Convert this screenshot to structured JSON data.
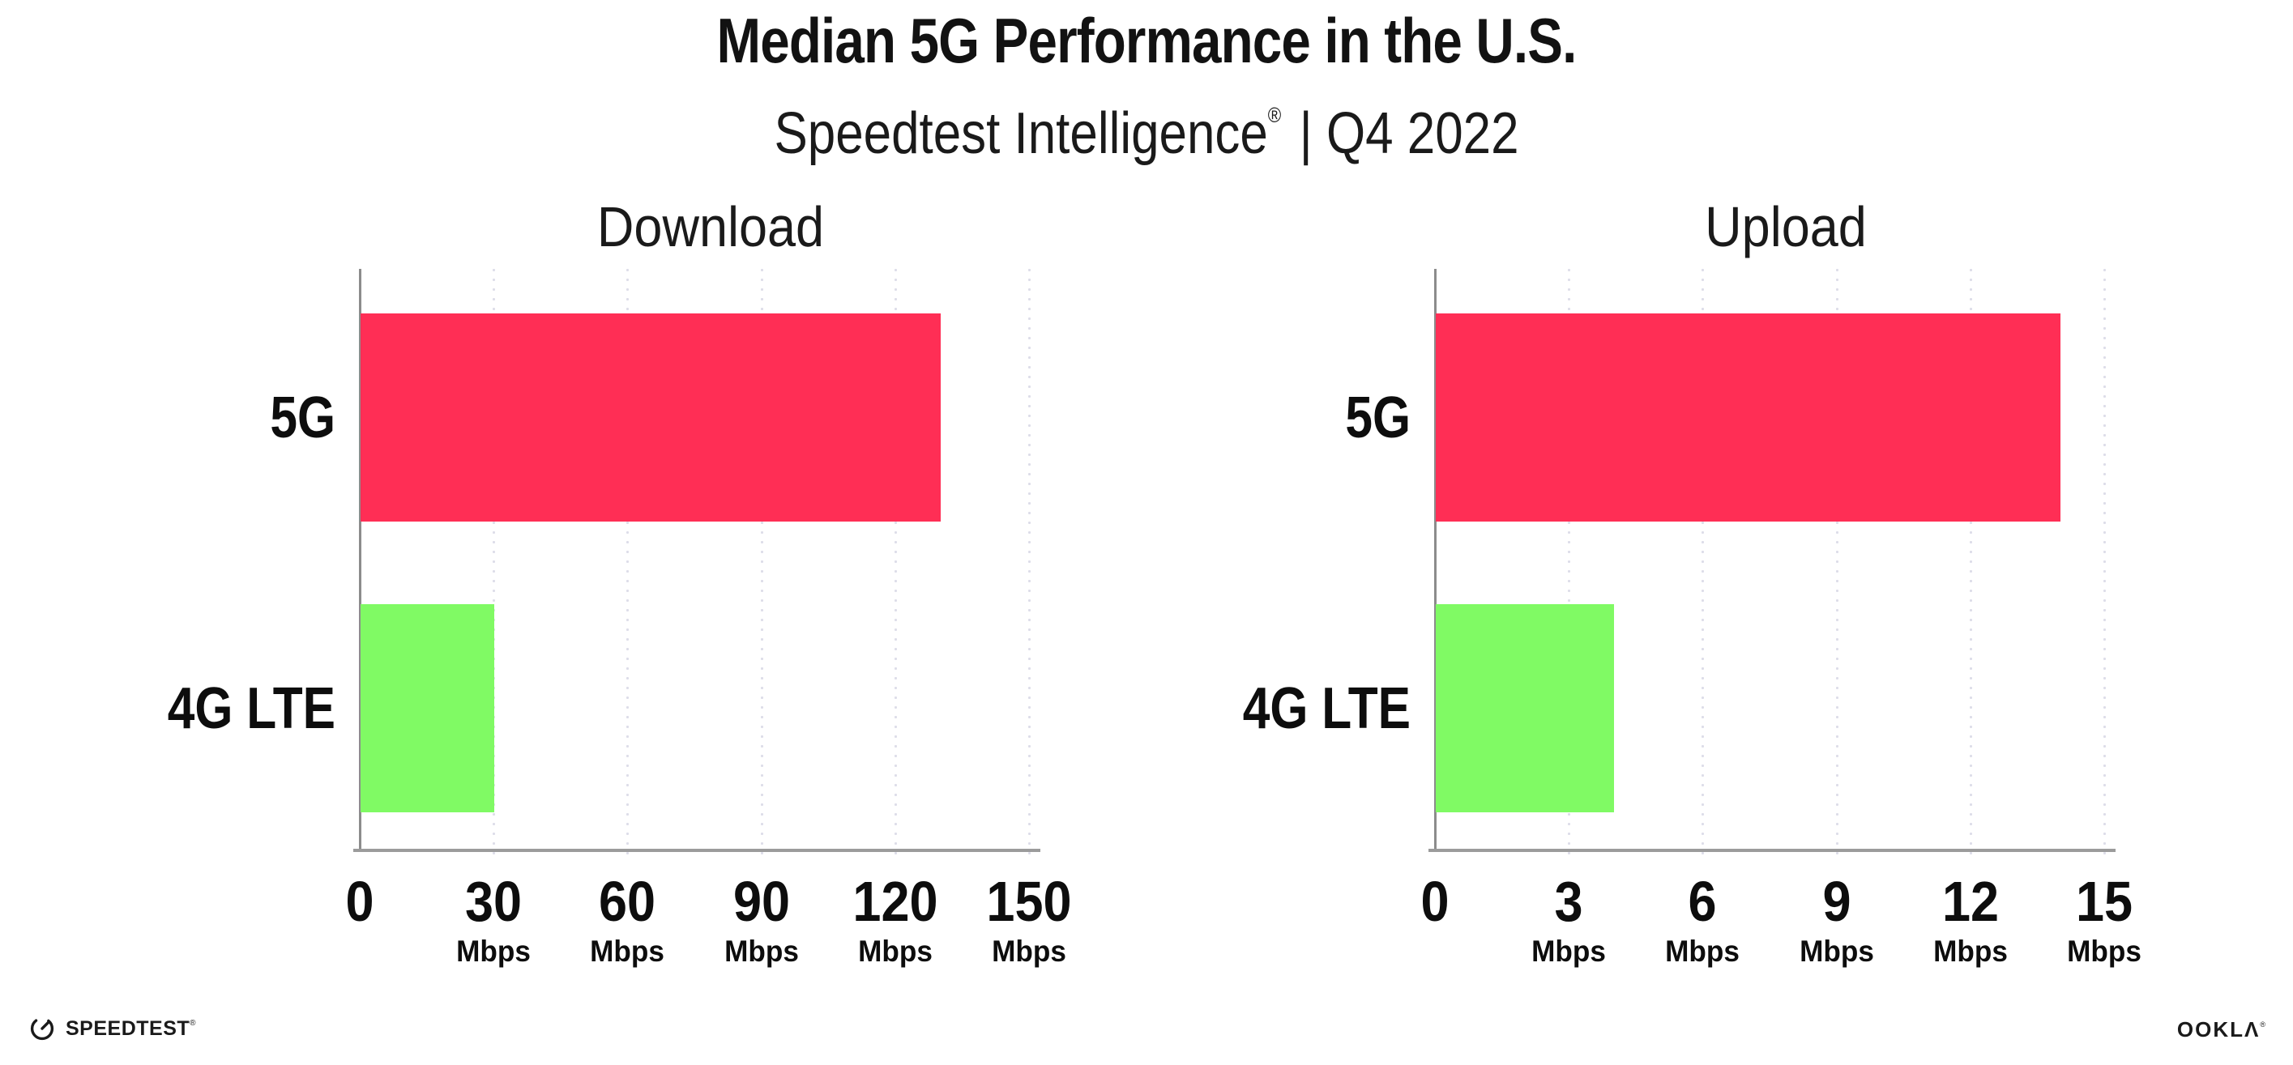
{
  "header": {
    "title": "Median 5G Performance in the U.S.",
    "subtitle_brand": "Speedtest Intelligence",
    "subtitle_reg": "®",
    "subtitle_rest": "| Q4 2022"
  },
  "chart_data": [
    {
      "type": "bar",
      "orientation": "horizontal",
      "title": "Download",
      "categories": [
        "5G",
        "4G LTE"
      ],
      "values": [
        130,
        30
      ],
      "unit": "Mbps",
      "xlim": [
        0,
        150
      ],
      "xticks": [
        0,
        30,
        60,
        90,
        120,
        150
      ],
      "bar_colors": [
        "#FF2E55",
        "#80FA64"
      ],
      "grid": "vertical-dotted",
      "legend": "none",
      "xlabel": "",
      "ylabel": ""
    },
    {
      "type": "bar",
      "orientation": "horizontal",
      "title": "Upload",
      "categories": [
        "5G",
        "4G LTE"
      ],
      "values": [
        14,
        4
      ],
      "unit": "Mbps",
      "xlim": [
        0,
        15
      ],
      "xticks": [
        0,
        3,
        6,
        9,
        12,
        15
      ],
      "bar_colors": [
        "#FF2E55",
        "#80FA64"
      ],
      "grid": "vertical-dotted",
      "legend": "none",
      "xlabel": "",
      "ylabel": ""
    }
  ],
  "footer": {
    "speedtest_label": "SPEEDTEST",
    "speedtest_mark": "®",
    "ookla_label": "OOKLΛ",
    "ookla_mark": "®"
  },
  "colors": {
    "bar_5g": "#FF2E55",
    "bar_4g_lte": "#80FA64",
    "axis": "#9B9B9B",
    "gridline": "#DDDDE9",
    "text": "#111111"
  }
}
